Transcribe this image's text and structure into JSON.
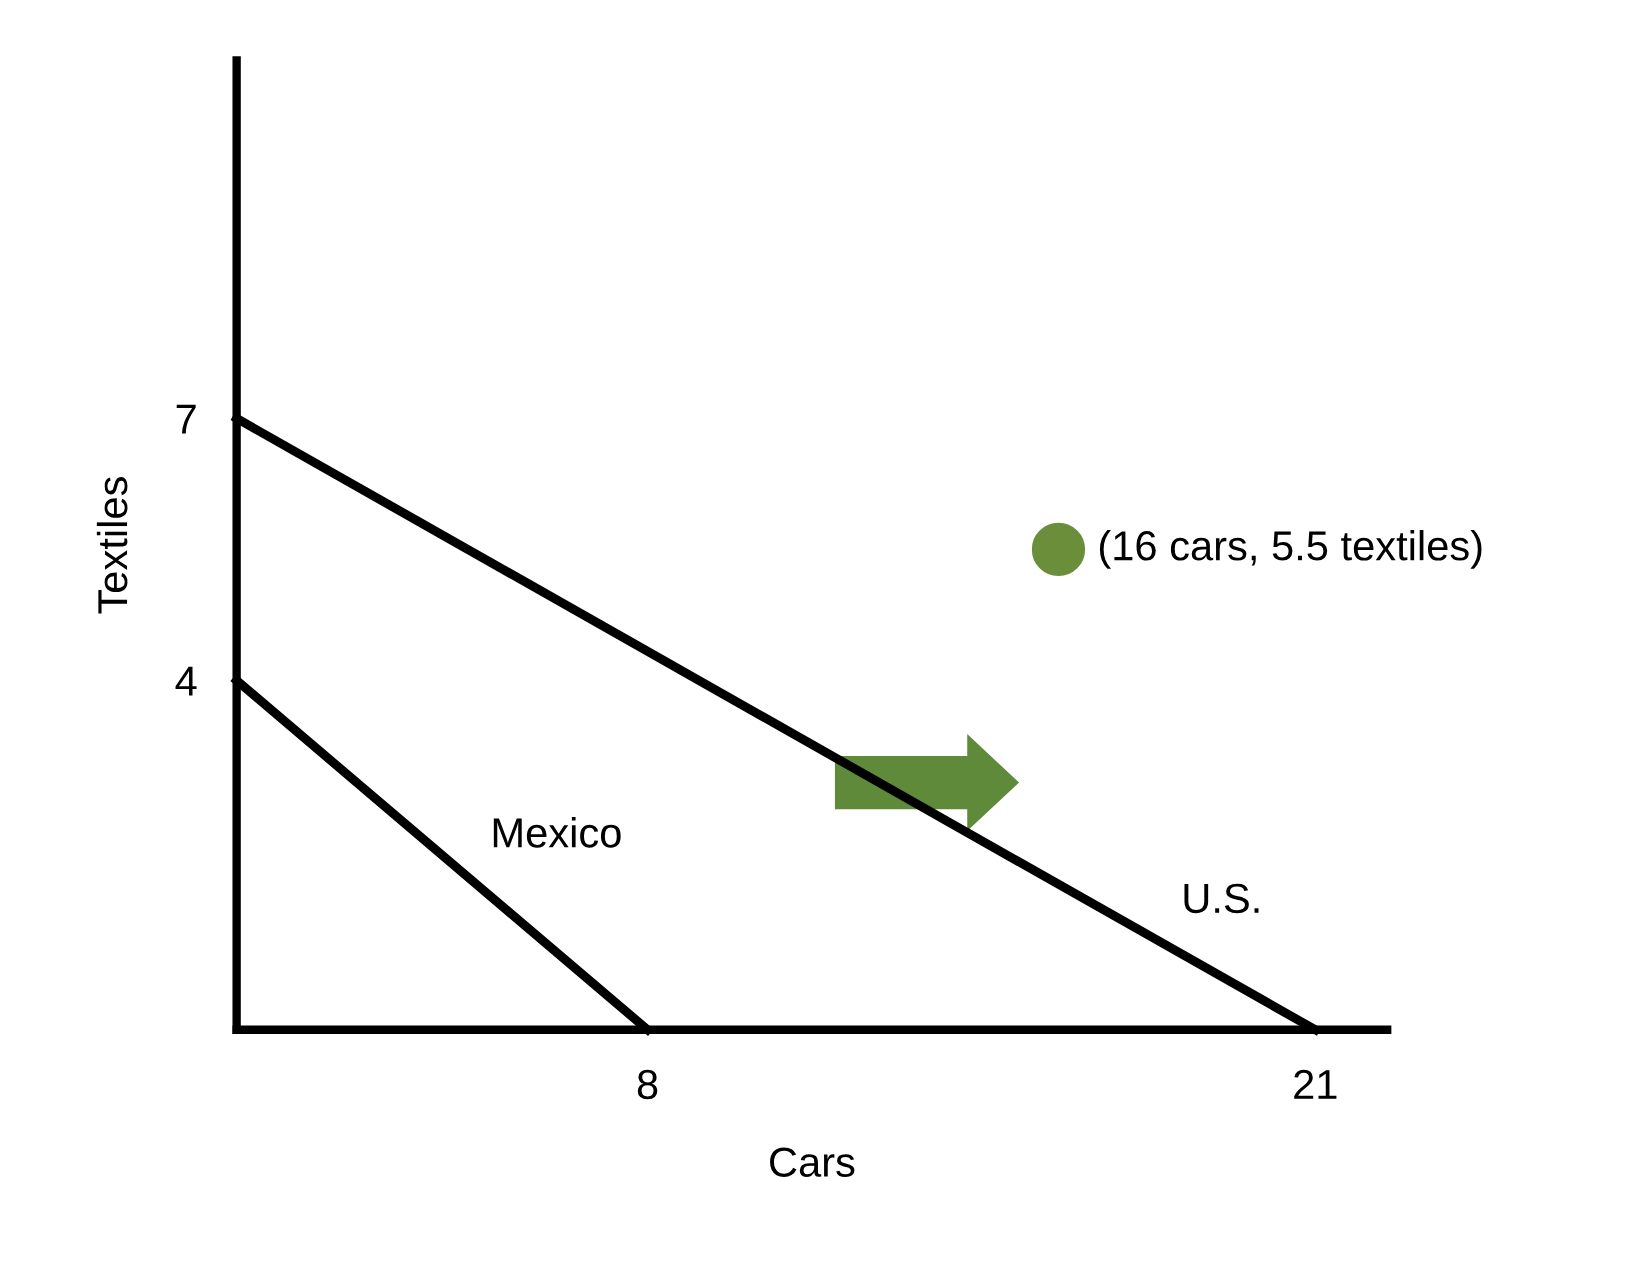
{
  "chart_data": {
    "type": "line",
    "xlabel": "Cars",
    "ylabel": "Textiles",
    "series": [
      {
        "name": "Mexico",
        "color": "#000000",
        "x": [
          0,
          8
        ],
        "values": [
          4,
          0
        ]
      },
      {
        "name": "U.S.",
        "color": "#000000",
        "x": [
          0,
          21
        ],
        "values": [
          7,
          0
        ]
      },
      {
        "type": "scatter",
        "color": "#6b8e3a",
        "marker": "circle",
        "x": [
          16
        ],
        "values": [
          5.5
        ]
      }
    ],
    "annotations": [
      {
        "text": "(16 cars, 5.5 textiles)",
        "x": 16,
        "y": 5.5
      }
    ],
    "xlim": [
      0,
      22.4
    ],
    "ylim": [
      0,
      11.1
    ],
    "xticks": [
      8,
      21
    ],
    "yticks": [
      4,
      7
    ],
    "grid": false,
    "legend": false,
    "marker": "none",
    "line_style": "solid"
  }
}
